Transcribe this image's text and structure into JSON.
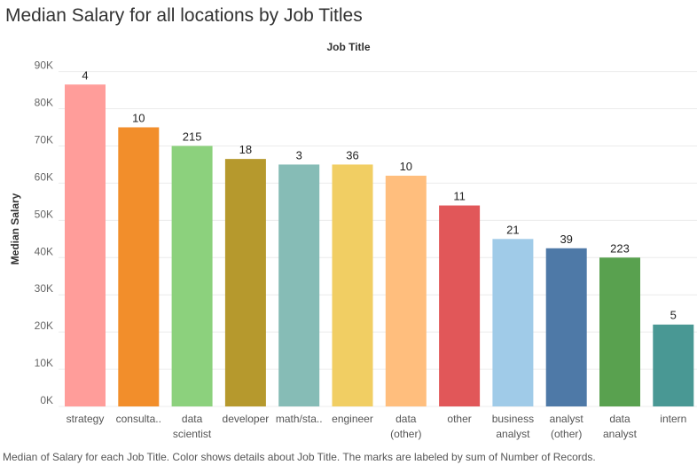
{
  "chart_data": {
    "type": "bar",
    "title": "Median Salary for all locations by Job Titles",
    "column_header": "Job Title",
    "ylabel": "Median Salary",
    "ylim": [
      0,
      93000
    ],
    "yticks": [
      0,
      10000,
      20000,
      30000,
      40000,
      50000,
      60000,
      70000,
      80000,
      90000
    ],
    "ytick_labels": [
      "0K",
      "10K",
      "20K",
      "30K",
      "40K",
      "50K",
      "60K",
      "70K",
      "80K",
      "90K"
    ],
    "grid": "horizontal",
    "categories": [
      [
        "strategy"
      ],
      [
        "consulta.."
      ],
      [
        "data",
        "scientist"
      ],
      [
        "developer"
      ],
      [
        "math/sta.."
      ],
      [
        "engineer"
      ],
      [
        "data",
        "(other)"
      ],
      [
        "other"
      ],
      [
        "business",
        "analyst"
      ],
      [
        "analyst",
        "(other)"
      ],
      [
        "data",
        "analyst"
      ],
      [
        "intern"
      ]
    ],
    "values": [
      86500,
      75000,
      70000,
      66500,
      65000,
      65000,
      62000,
      54000,
      45000,
      42500,
      40000,
      22000
    ],
    "labels": [
      4,
      10,
      215,
      18,
      3,
      36,
      10,
      11,
      21,
      39,
      223,
      5
    ],
    "colors": [
      "#ff9d9a",
      "#f28e2b",
      "#8cd17d",
      "#b6992d",
      "#86bcb6",
      "#f1ce63",
      "#ffbe7d",
      "#e15759",
      "#a0cbe8",
      "#4e79a7",
      "#59a14f",
      "#499894"
    ]
  },
  "footer": "Median of Salary for each Job Title.  Color shows details about Job Title.  The marks are labeled by sum of Number of Records."
}
